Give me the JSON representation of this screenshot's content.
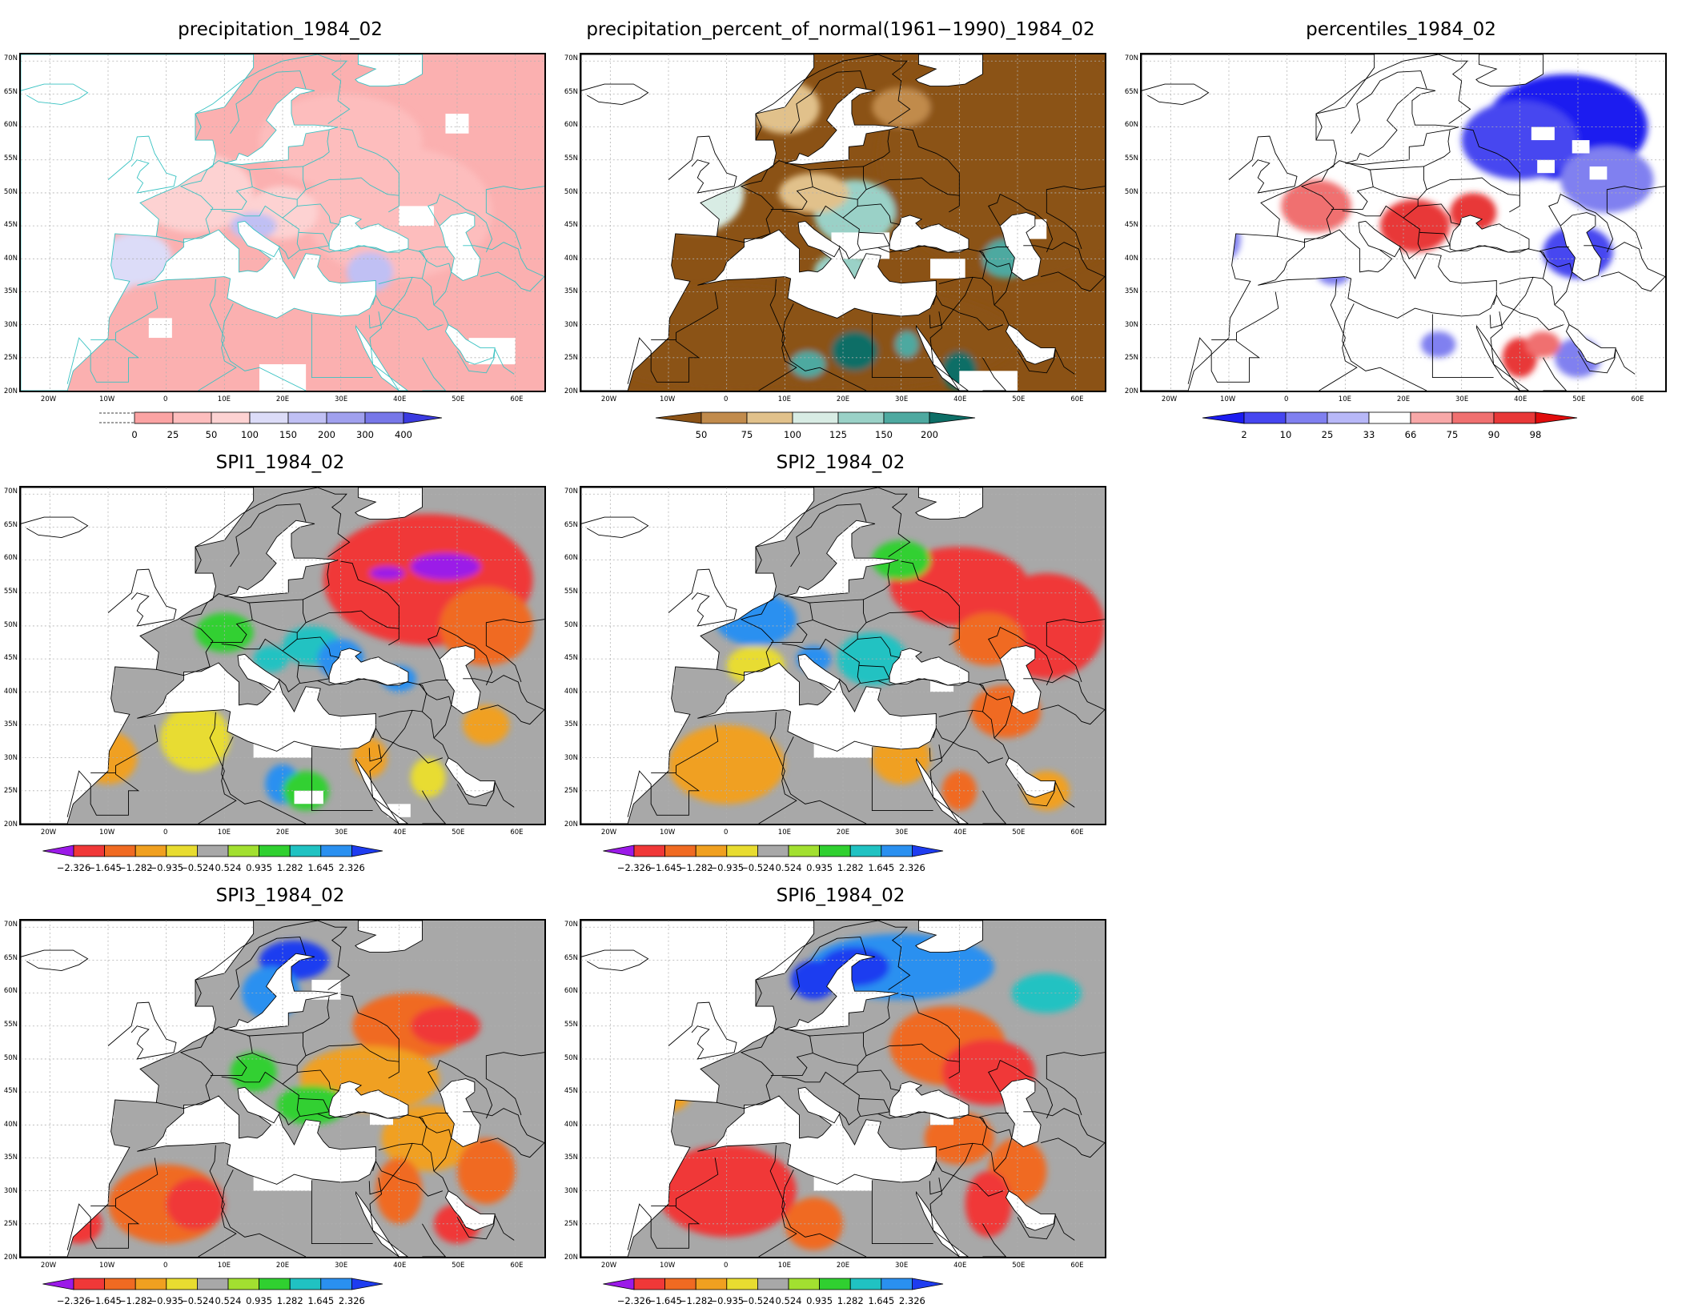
{
  "axes": {
    "lat_labels": [
      "70N",
      "65N",
      "60N",
      "55N",
      "50N",
      "45N",
      "40N",
      "35N",
      "30N",
      "25N",
      "20N"
    ],
    "lon_labels": [
      "20W",
      "10W",
      "0",
      "10E",
      "20E",
      "30E",
      "40E",
      "50E",
      "60E"
    ]
  },
  "panels": [
    {
      "title": "precipitation_1984_02",
      "colorbar_labels": [
        "0",
        "25",
        "50",
        "100",
        "150",
        "200",
        "300",
        "400"
      ],
      "colorbar_colors": [
        "#fba3a3",
        "#fdbdbd",
        "#fdd2d2",
        "#dcdcf8",
        "#c0c0f4",
        "#a0a0ee",
        "#7777e8",
        "#3a3ae0"
      ],
      "colorbar_ends": [
        "none",
        "arrow"
      ],
      "map": {
        "base": "#fbb0b0",
        "land": "white",
        "borders": "#38c2c2"
      }
    },
    {
      "title": "precipitation_percent_of_normal(1961−1990)_1984_02",
      "colorbar_labels": [
        "50",
        "75",
        "100",
        "125",
        "150",
        "200"
      ],
      "colorbar_colors": [
        "#8b5215",
        "#c18b4c",
        "#e1c18b",
        "#d8ece4",
        "#9ad1c7",
        "#4ea9a0",
        "#0d6e66"
      ],
      "colorbar_ends": [
        "arrow",
        "arrow"
      ],
      "map": {
        "base": "#8b5215",
        "land": "white",
        "borders": "#000000"
      }
    },
    {
      "title": "percentiles_1984_02",
      "colorbar_labels": [
        "2",
        "10",
        "25",
        "33",
        "66",
        "75",
        "90",
        "98"
      ],
      "colorbar_colors": [
        "#1c1cf0",
        "#4646f0",
        "#8080f0",
        "#b8b8f8",
        "#ffffff",
        "#f8a8a8",
        "#f07070",
        "#e83838",
        "#e00c0c"
      ],
      "colorbar_ends": [
        "arrow",
        "arrow"
      ],
      "map": {
        "base": "#ffffff",
        "land": "white",
        "borders": "#000000"
      }
    },
    {
      "title": "SPI1_1984_02",
      "colorbar_labels": [
        "−2.326",
        "−1.645",
        "−1.282",
        "−0.935",
        "−0.524",
        "0.524",
        "0.935",
        "1.282",
        "1.645",
        "2.326"
      ],
      "colorbar_colors": [
        "#9b1ae8",
        "#f03838",
        "#f06a22",
        "#f0a020",
        "#e8dc30",
        "#a8a8a8",
        "#a2e030",
        "#30d030",
        "#20c2c2",
        "#2a90f0",
        "#1e3cf0"
      ],
      "colorbar_ends": [
        "arrow",
        "arrow"
      ],
      "map": {
        "base": "#a8a8a8",
        "land": "white",
        "borders": "#000000"
      }
    },
    {
      "title": "SPI2_1984_02",
      "colorbar_labels": [
        "−2.326",
        "−1.645",
        "−1.282",
        "−0.935",
        "−0.524",
        "0.524",
        "0.935",
        "1.282",
        "1.645",
        "2.326"
      ],
      "colorbar_colors": [
        "#9b1ae8",
        "#f03838",
        "#f06a22",
        "#f0a020",
        "#e8dc30",
        "#a8a8a8",
        "#a2e030",
        "#30d030",
        "#20c2c2",
        "#2a90f0",
        "#1e3cf0"
      ],
      "colorbar_ends": [
        "arrow",
        "arrow"
      ],
      "map": {
        "base": "#a8a8a8",
        "land": "white",
        "borders": "#000000"
      }
    },
    {
      "title": "SPI3_1984_02",
      "colorbar_labels": [
        "−2.326",
        "−1.645",
        "−1.282",
        "−0.935",
        "−0.524",
        "0.524",
        "0.935",
        "1.282",
        "1.645",
        "2.326"
      ],
      "colorbar_colors": [
        "#9b1ae8",
        "#f03838",
        "#f06a22",
        "#f0a020",
        "#e8dc30",
        "#a8a8a8",
        "#a2e030",
        "#30d030",
        "#20c2c2",
        "#2a90f0",
        "#1e3cf0"
      ],
      "colorbar_ends": [
        "arrow",
        "arrow"
      ],
      "map": {
        "base": "#a8a8a8",
        "land": "white",
        "borders": "#000000"
      }
    },
    {
      "title": "SPI6_1984_02",
      "colorbar_labels": [
        "−2.326",
        "−1.645",
        "−1.282",
        "−0.935",
        "−0.524",
        "0.524",
        "0.935",
        "1.282",
        "1.645",
        "2.326"
      ],
      "colorbar_colors": [
        "#9b1ae8",
        "#f03838",
        "#f06a22",
        "#f0a020",
        "#e8dc30",
        "#a8a8a8",
        "#a2e030",
        "#30d030",
        "#20c2c2",
        "#2a90f0",
        "#1e3cf0"
      ],
      "colorbar_ends": [
        "arrow",
        "arrow"
      ],
      "map": {
        "base": "#a8a8a8",
        "land": "white",
        "borders": "#000000"
      }
    }
  ]
}
